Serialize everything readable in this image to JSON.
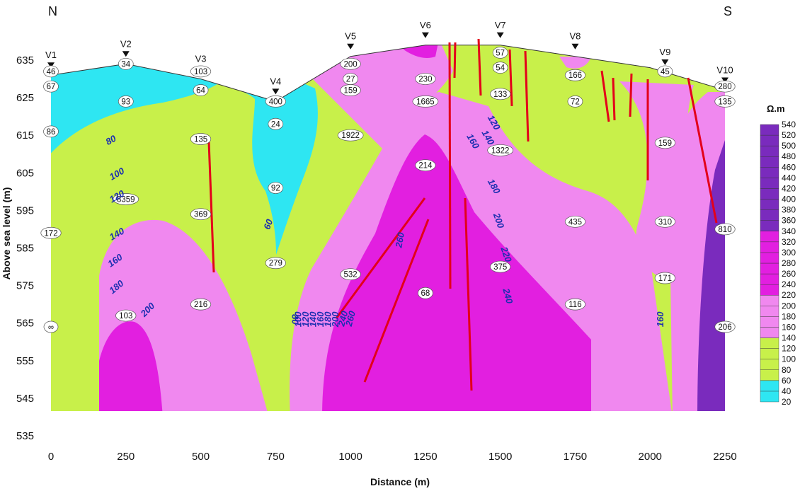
{
  "chart_data": {
    "type": "heatmap",
    "title": "",
    "xlabel": "Distance (m)",
    "ylabel": "Above sea level (m)",
    "xlim": [
      0,
      2250
    ],
    "ylim": [
      535,
      640
    ],
    "x_ticks": [
      0,
      250,
      500,
      750,
      1000,
      1250,
      1500,
      1750,
      2000,
      2250
    ],
    "y_ticks": [
      535,
      545,
      555,
      565,
      575,
      585,
      595,
      605,
      615,
      625,
      635
    ],
    "direction_left": "N",
    "direction_right": "S",
    "colorbar_title": "Ω.m",
    "colorbar_ticks": [
      20,
      40,
      60,
      80,
      100,
      120,
      140,
      160,
      180,
      200,
      220,
      240,
      260,
      280,
      300,
      320,
      340,
      360,
      380,
      400,
      420,
      440,
      460,
      480,
      500,
      520,
      540
    ],
    "colorbar_colors": {
      "low": "#2ee6f2",
      "medium": "#c8f04a",
      "high": "#f088ef",
      "very_high": "#e21fe0",
      "extreme": "#7a2bbd"
    },
    "surface": [
      [
        0,
        631
      ],
      [
        250,
        634
      ],
      [
        500,
        630
      ],
      [
        750,
        624
      ],
      [
        1000,
        636
      ],
      [
        1250,
        639
      ],
      [
        1500,
        639
      ],
      [
        1750,
        636
      ],
      [
        2000,
        633
      ],
      [
        2250,
        627
      ]
    ],
    "stations": [
      {
        "name": "V1",
        "x": 0
      },
      {
        "name": "V2",
        "x": 250
      },
      {
        "name": "V3",
        "x": 500
      },
      {
        "name": "V4",
        "x": 750
      },
      {
        "name": "V5",
        "x": 1000
      },
      {
        "name": "V6",
        "x": 1250
      },
      {
        "name": "V7",
        "x": 1500
      },
      {
        "name": "V8",
        "x": 1750
      },
      {
        "name": "V9",
        "x": 2050
      },
      {
        "name": "V10",
        "x": 2250
      }
    ],
    "resistivity_labels": [
      {
        "x": 0,
        "y": 632,
        "text": "46"
      },
      {
        "x": 0,
        "y": 628,
        "text": "67"
      },
      {
        "x": 0,
        "y": 616,
        "text": "86"
      },
      {
        "x": 0,
        "y": 589,
        "text": "172"
      },
      {
        "x": 0,
        "y": 564,
        "text": "∞"
      },
      {
        "x": 250,
        "y": 634,
        "text": "34"
      },
      {
        "x": 250,
        "y": 624,
        "text": "93"
      },
      {
        "x": 250,
        "y": 598,
        "text": "8359"
      },
      {
        "x": 250,
        "y": 567,
        "text": "103"
      },
      {
        "x": 500,
        "y": 632,
        "text": "103"
      },
      {
        "x": 500,
        "y": 627,
        "text": "64"
      },
      {
        "x": 500,
        "y": 614,
        "text": "135"
      },
      {
        "x": 500,
        "y": 594,
        "text": "369"
      },
      {
        "x": 500,
        "y": 570,
        "text": "216"
      },
      {
        "x": 750,
        "y": 624,
        "text": "400"
      },
      {
        "x": 750,
        "y": 618,
        "text": "24"
      },
      {
        "x": 750,
        "y": 601,
        "text": "92"
      },
      {
        "x": 750,
        "y": 581,
        "text": "279"
      },
      {
        "x": 1000,
        "y": 634,
        "text": "200"
      },
      {
        "x": 1000,
        "y": 630,
        "text": "27"
      },
      {
        "x": 1000,
        "y": 627,
        "text": "159"
      },
      {
        "x": 1000,
        "y": 615,
        "text": "1922"
      },
      {
        "x": 1000,
        "y": 578,
        "text": "532"
      },
      {
        "x": 1250,
        "y": 630,
        "text": "230"
      },
      {
        "x": 1250,
        "y": 624,
        "text": "1665"
      },
      {
        "x": 1250,
        "y": 607,
        "text": "214"
      },
      {
        "x": 1250,
        "y": 573,
        "text": "68"
      },
      {
        "x": 1500,
        "y": 637,
        "text": "57"
      },
      {
        "x": 1500,
        "y": 633,
        "text": "54"
      },
      {
        "x": 1500,
        "y": 626,
        "text": "133"
      },
      {
        "x": 1500,
        "y": 611,
        "text": "1322"
      },
      {
        "x": 1500,
        "y": 580,
        "text": "375"
      },
      {
        "x": 1750,
        "y": 631,
        "text": "166"
      },
      {
        "x": 1750,
        "y": 624,
        "text": "72"
      },
      {
        "x": 1750,
        "y": 592,
        "text": "435"
      },
      {
        "x": 1750,
        "y": 570,
        "text": "116"
      },
      {
        "x": 2050,
        "y": 632,
        "text": "45"
      },
      {
        "x": 2050,
        "y": 613,
        "text": "159"
      },
      {
        "x": 2050,
        "y": 592,
        "text": "310"
      },
      {
        "x": 2050,
        "y": 577,
        "text": "171"
      },
      {
        "x": 2250,
        "y": 628,
        "text": "280"
      },
      {
        "x": 2250,
        "y": 624,
        "text": "135"
      },
      {
        "x": 2250,
        "y": 590,
        "text": "810"
      },
      {
        "x": 2250,
        "y": 564,
        "text": "206"
      }
    ],
    "contour_labels": [
      {
        "x": 205,
        "y": 613,
        "text": "80",
        "rot": -30
      },
      {
        "x": 225,
        "y": 604,
        "text": "100",
        "rot": -30
      },
      {
        "x": 225,
        "y": 598,
        "text": "120",
        "rot": -30
      },
      {
        "x": 225,
        "y": 588,
        "text": "140",
        "rot": -30
      },
      {
        "x": 220,
        "y": 581,
        "text": "160",
        "rot": -35
      },
      {
        "x": 225,
        "y": 574,
        "text": "180",
        "rot": -40
      },
      {
        "x": 330,
        "y": 568,
        "text": "200",
        "rot": -45
      },
      {
        "x": 735,
        "y": 591,
        "text": "60",
        "rot": -70
      },
      {
        "x": 805,
        "y": 566,
        "text": "80",
        "rot": 90
      },
      {
        "x": 835,
        "y": 566,
        "text": "100",
        "rot": -90
      },
      {
        "x": 860,
        "y": 566,
        "text": "120",
        "rot": -90
      },
      {
        "x": 885,
        "y": 566,
        "text": "140",
        "rot": -90
      },
      {
        "x": 910,
        "y": 566,
        "text": "160",
        "rot": -90
      },
      {
        "x": 935,
        "y": 566,
        "text": "180",
        "rot": -90
      },
      {
        "x": 960,
        "y": 566,
        "text": "200",
        "rot": -90
      },
      {
        "x": 985,
        "y": 566,
        "text": "240",
        "rot": -75
      },
      {
        "x": 1010,
        "y": 566,
        "text": "260",
        "rot": -75
      },
      {
        "x": 1175,
        "y": 587,
        "text": "260",
        "rot": -80
      },
      {
        "x": 1400,
        "y": 613,
        "text": "160",
        "rot": 60
      },
      {
        "x": 1450,
        "y": 614,
        "text": "140",
        "rot": 60
      },
      {
        "x": 1470,
        "y": 618,
        "text": "120",
        "rot": 60
      },
      {
        "x": 1470,
        "y": 601,
        "text": "180",
        "rot": 60
      },
      {
        "x": 1485,
        "y": 592,
        "text": "200",
        "rot": 70
      },
      {
        "x": 1510,
        "y": 583,
        "text": "220",
        "rot": 70
      },
      {
        "x": 1515,
        "y": 572,
        "text": "240",
        "rot": 75
      },
      {
        "x": 2045,
        "y": 566,
        "text": "160",
        "rot": -90
      }
    ]
  }
}
